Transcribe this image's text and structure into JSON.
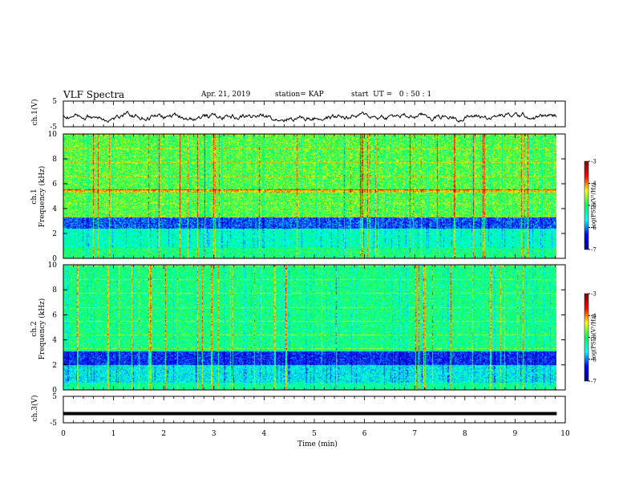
{
  "header": {
    "title": "VLF Spectra",
    "date": "Apr. 21, 2019",
    "station": "station= KAP",
    "start_ut": "start  UT =   0 : 50 : 1"
  },
  "chart_data": [
    {
      "type": "line",
      "panel": "ch1-waveform",
      "ylabel": "ch.1(V)",
      "ylim": [
        -5,
        5
      ],
      "yticks": [
        "5",
        "-5"
      ],
      "xlim": [
        0,
        10
      ],
      "series": [
        {
          "description_values": "noisy voltage trace, roughly -3 to 1 V, data ends near 9.8 min"
        }
      ]
    },
    {
      "type": "heatmap",
      "panel": "ch1-spectrogram",
      "ylabel": "ch.1\nFrequency (kHz)",
      "ylim": [
        0,
        10
      ],
      "yticks": [
        "10",
        "8",
        "6",
        "4",
        "2",
        "0"
      ],
      "xlim": [
        0,
        10
      ],
      "colorbar": {
        "label": "log(PSD)(V²/Hz)",
        "range": [
          -7,
          -3
        ],
        "ticks": [
          "-3",
          "-4",
          "-5",
          "-6",
          "-7"
        ]
      }
    },
    {
      "type": "heatmap",
      "panel": "ch2-spectrogram",
      "ylabel": "ch.2\nFrequency (kHz)",
      "ylim": [
        0,
        10
      ],
      "yticks": [
        "10",
        "8",
        "6",
        "4",
        "2",
        "0"
      ],
      "xlim": [
        0,
        10
      ],
      "colorbar": {
        "label": "log(PSD)(V²/Hz)",
        "range": [
          -7,
          -3
        ],
        "ticks": [
          "-3",
          "-4",
          "-5",
          "-6",
          "-7"
        ]
      }
    },
    {
      "type": "line",
      "panel": "ch3-waveform",
      "ylabel": "ch.3(V)",
      "ylim": [
        -5,
        5
      ],
      "yticks": [
        "5",
        "-5"
      ],
      "xlim": [
        0,
        10
      ],
      "series": [
        {
          "description_values": "flat trace at about -1.5 V"
        }
      ]
    }
  ],
  "xaxis": {
    "label": "Time (min)",
    "ticks": [
      "0",
      "1",
      "2",
      "3",
      "4",
      "5",
      "6",
      "7",
      "8",
      "9",
      "10"
    ]
  },
  "colors": {
    "line": "#000000",
    "cmap": [
      "#00008f",
      "#0000ff",
      "#00ffff",
      "#00ff60",
      "#ffff00",
      "#ff0000",
      "#800000"
    ]
  }
}
